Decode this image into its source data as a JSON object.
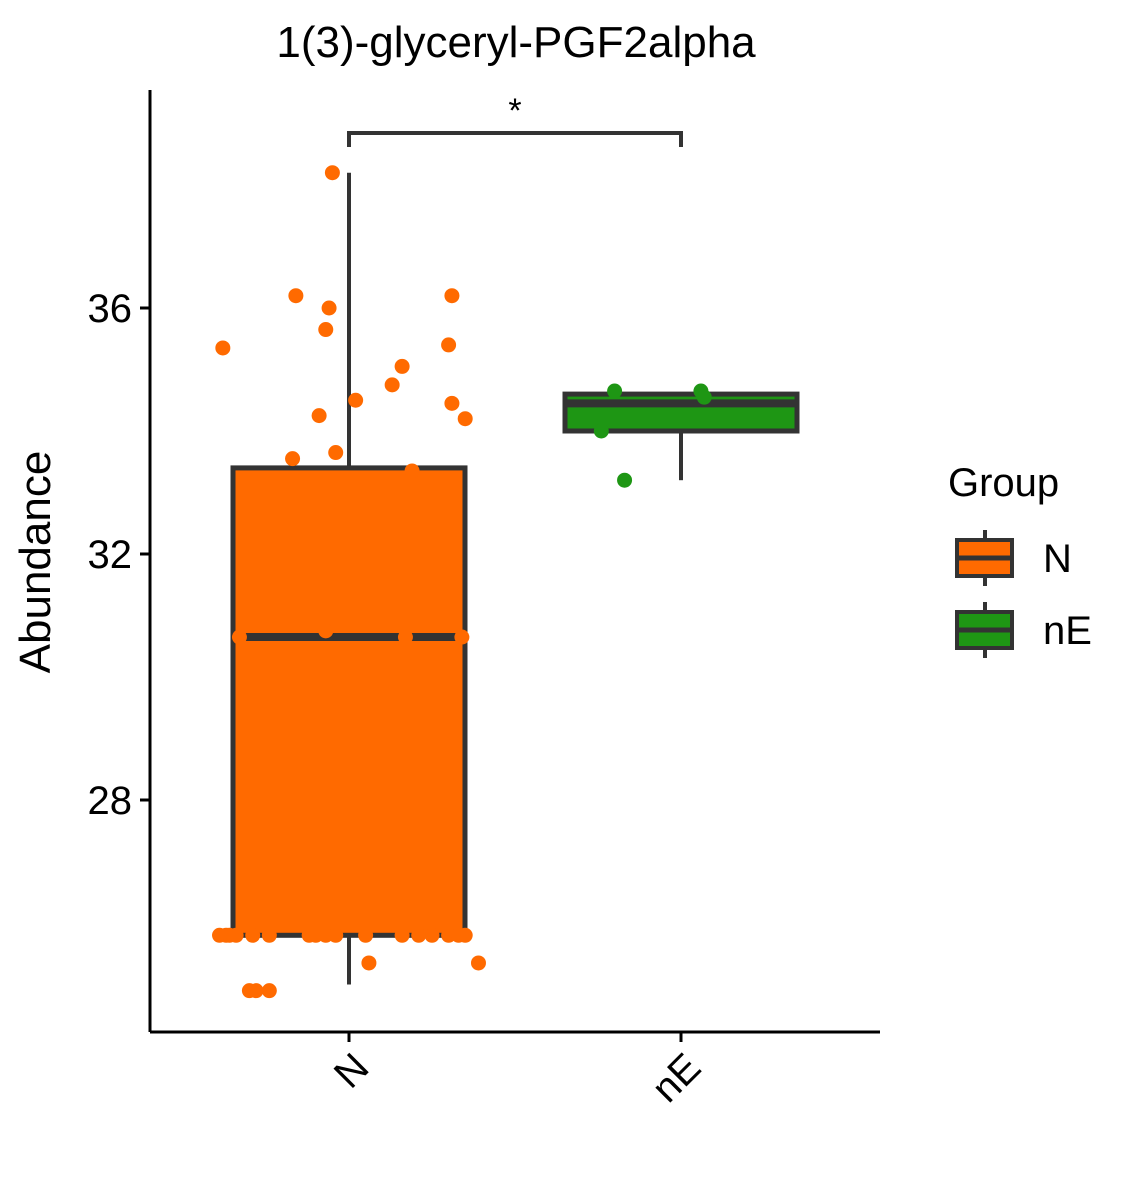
{
  "chart_data": {
    "type": "box",
    "title": "1(3)-glyceryl-PGF2alpha",
    "xlabel": "",
    "ylabel": "Abundance",
    "y_ticks": [
      28,
      32,
      36
    ],
    "ylim": [
      24.6,
      39.4
    ],
    "categories": [
      "N",
      "nE"
    ],
    "colors": {
      "N": "#ff6a00",
      "nE": "#1e9614",
      "box_line": "#333333"
    },
    "boxes": [
      {
        "group": "N",
        "min": 25.0,
        "q1": 25.8,
        "median": 30.65,
        "q3": 33.4,
        "max": 38.2
      },
      {
        "group": "nE",
        "min": 33.2,
        "q1": 34.0,
        "median": 34.45,
        "q3": 34.6,
        "max": 34.6
      }
    ],
    "points": {
      "N": [
        {
          "x": -0.39,
          "y": 25.8
        },
        {
          "x": -0.37,
          "y": 25.8
        },
        {
          "x": -0.36,
          "y": 25.8
        },
        {
          "x": -0.34,
          "y": 25.8
        },
        {
          "x": -0.29,
          "y": 25.8
        },
        {
          "x": -0.24,
          "y": 25.8
        },
        {
          "x": -0.12,
          "y": 25.8
        },
        {
          "x": -0.1,
          "y": 25.8
        },
        {
          "x": -0.07,
          "y": 25.8
        },
        {
          "x": -0.04,
          "y": 25.8
        },
        {
          "x": 0.05,
          "y": 25.8
        },
        {
          "x": 0.16,
          "y": 25.8
        },
        {
          "x": 0.21,
          "y": 25.8
        },
        {
          "x": 0.25,
          "y": 25.8
        },
        {
          "x": 0.3,
          "y": 25.8
        },
        {
          "x": 0.33,
          "y": 25.8
        },
        {
          "x": 0.35,
          "y": 25.8
        },
        {
          "x": 0.06,
          "y": 25.35
        },
        {
          "x": 0.39,
          "y": 25.35
        },
        {
          "x": -0.3,
          "y": 24.9
        },
        {
          "x": -0.28,
          "y": 24.9
        },
        {
          "x": -0.24,
          "y": 24.9
        },
        {
          "x": -0.33,
          "y": 30.65
        },
        {
          "x": -0.07,
          "y": 30.75
        },
        {
          "x": 0.17,
          "y": 30.65
        },
        {
          "x": 0.34,
          "y": 30.65
        },
        {
          "x": -0.17,
          "y": 33.55
        },
        {
          "x": -0.04,
          "y": 33.65
        },
        {
          "x": 0.19,
          "y": 33.35
        },
        {
          "x": -0.09,
          "y": 34.25
        },
        {
          "x": 0.02,
          "y": 34.5
        },
        {
          "x": 0.13,
          "y": 34.75
        },
        {
          "x": 0.31,
          "y": 34.45
        },
        {
          "x": 0.35,
          "y": 34.2
        },
        {
          "x": 0.16,
          "y": 35.05
        },
        {
          "x": 0.3,
          "y": 35.4
        },
        {
          "x": -0.38,
          "y": 35.35
        },
        {
          "x": -0.07,
          "y": 35.65
        },
        {
          "x": -0.06,
          "y": 36.0
        },
        {
          "x": -0.16,
          "y": 36.2
        },
        {
          "x": 0.31,
          "y": 36.2
        },
        {
          "x": -0.05,
          "y": 38.2
        }
      ],
      "nE": [
        {
          "x": -0.24,
          "y": 34.0
        },
        {
          "x": -0.2,
          "y": 34.65
        },
        {
          "x": -0.17,
          "y": 33.2
        },
        {
          "x": 0.06,
          "y": 34.65
        },
        {
          "x": 0.07,
          "y": 34.55
        }
      ]
    },
    "significance": {
      "label": "*",
      "from": "N",
      "to": "nE"
    },
    "legend": {
      "title": "Group",
      "placement": "right",
      "entries": [
        {
          "label": "N",
          "group": "N"
        },
        {
          "label": "nE",
          "group": "nE"
        }
      ]
    },
    "grid": false
  }
}
